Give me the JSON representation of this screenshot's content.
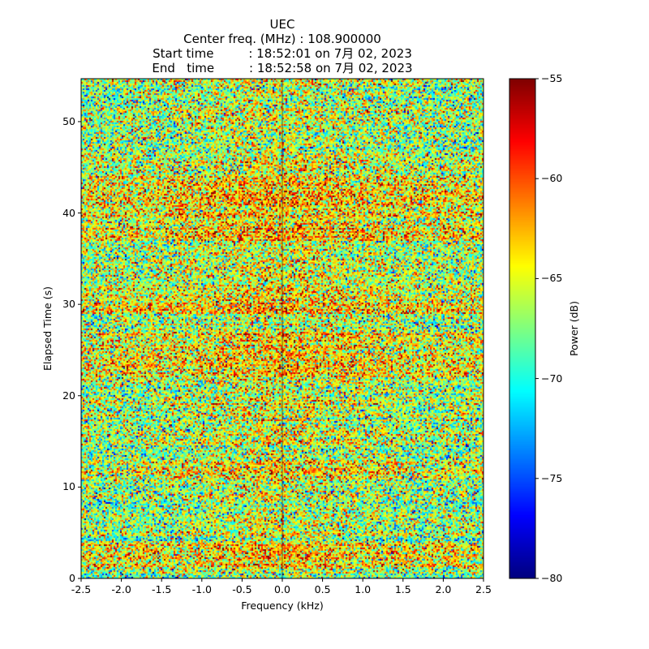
{
  "chart_data": {
    "type": "heatmap",
    "title_lines": [
      "UEC",
      "Center freq. (MHz) : 108.900000",
      "Start time         : 18:52:01 on 7月 02, 2023",
      "End   time         : 18:52:58 on 7月 02, 2023"
    ],
    "xlabel": "Frequency (kHz)",
    "ylabel": "Elapsed Time (s)",
    "xlim": [
      -2.5,
      2.5
    ],
    "ylim": [
      0,
      54.7
    ],
    "x_ticks": [
      -2.5,
      -2.0,
      -1.5,
      -1.0,
      -0.5,
      0.0,
      0.5,
      1.0,
      1.5,
      2.0,
      2.5
    ],
    "x_tick_labels": [
      "-2.5",
      "-2.0",
      "-1.5",
      "-1.0",
      "-0.5",
      "0.0",
      "0.5",
      "1.0",
      "1.5",
      "2.0",
      "2.5"
    ],
    "y_ticks": [
      0,
      10,
      20,
      30,
      40,
      50
    ],
    "y_tick_labels": [
      "0",
      "10",
      "20",
      "30",
      "40",
      "50"
    ],
    "colorbar": {
      "label": "Power (dB)",
      "colormap": "jet",
      "vmin": -80,
      "vmax": -55,
      "ticks": [
        -55,
        -60,
        -65,
        -70,
        -75,
        -80
      ],
      "tick_labels": [
        "−55",
        "−60",
        "−65",
        "−70",
        "−75",
        "−80"
      ]
    },
    "center_line_x": 0.0,
    "enhanced_power_bands_s": [
      [
        1,
        4
      ],
      [
        11,
        13
      ],
      [
        22,
        27
      ],
      [
        29,
        32
      ],
      [
        37,
        44
      ]
    ],
    "mean_power_db": -67,
    "grid": false
  }
}
